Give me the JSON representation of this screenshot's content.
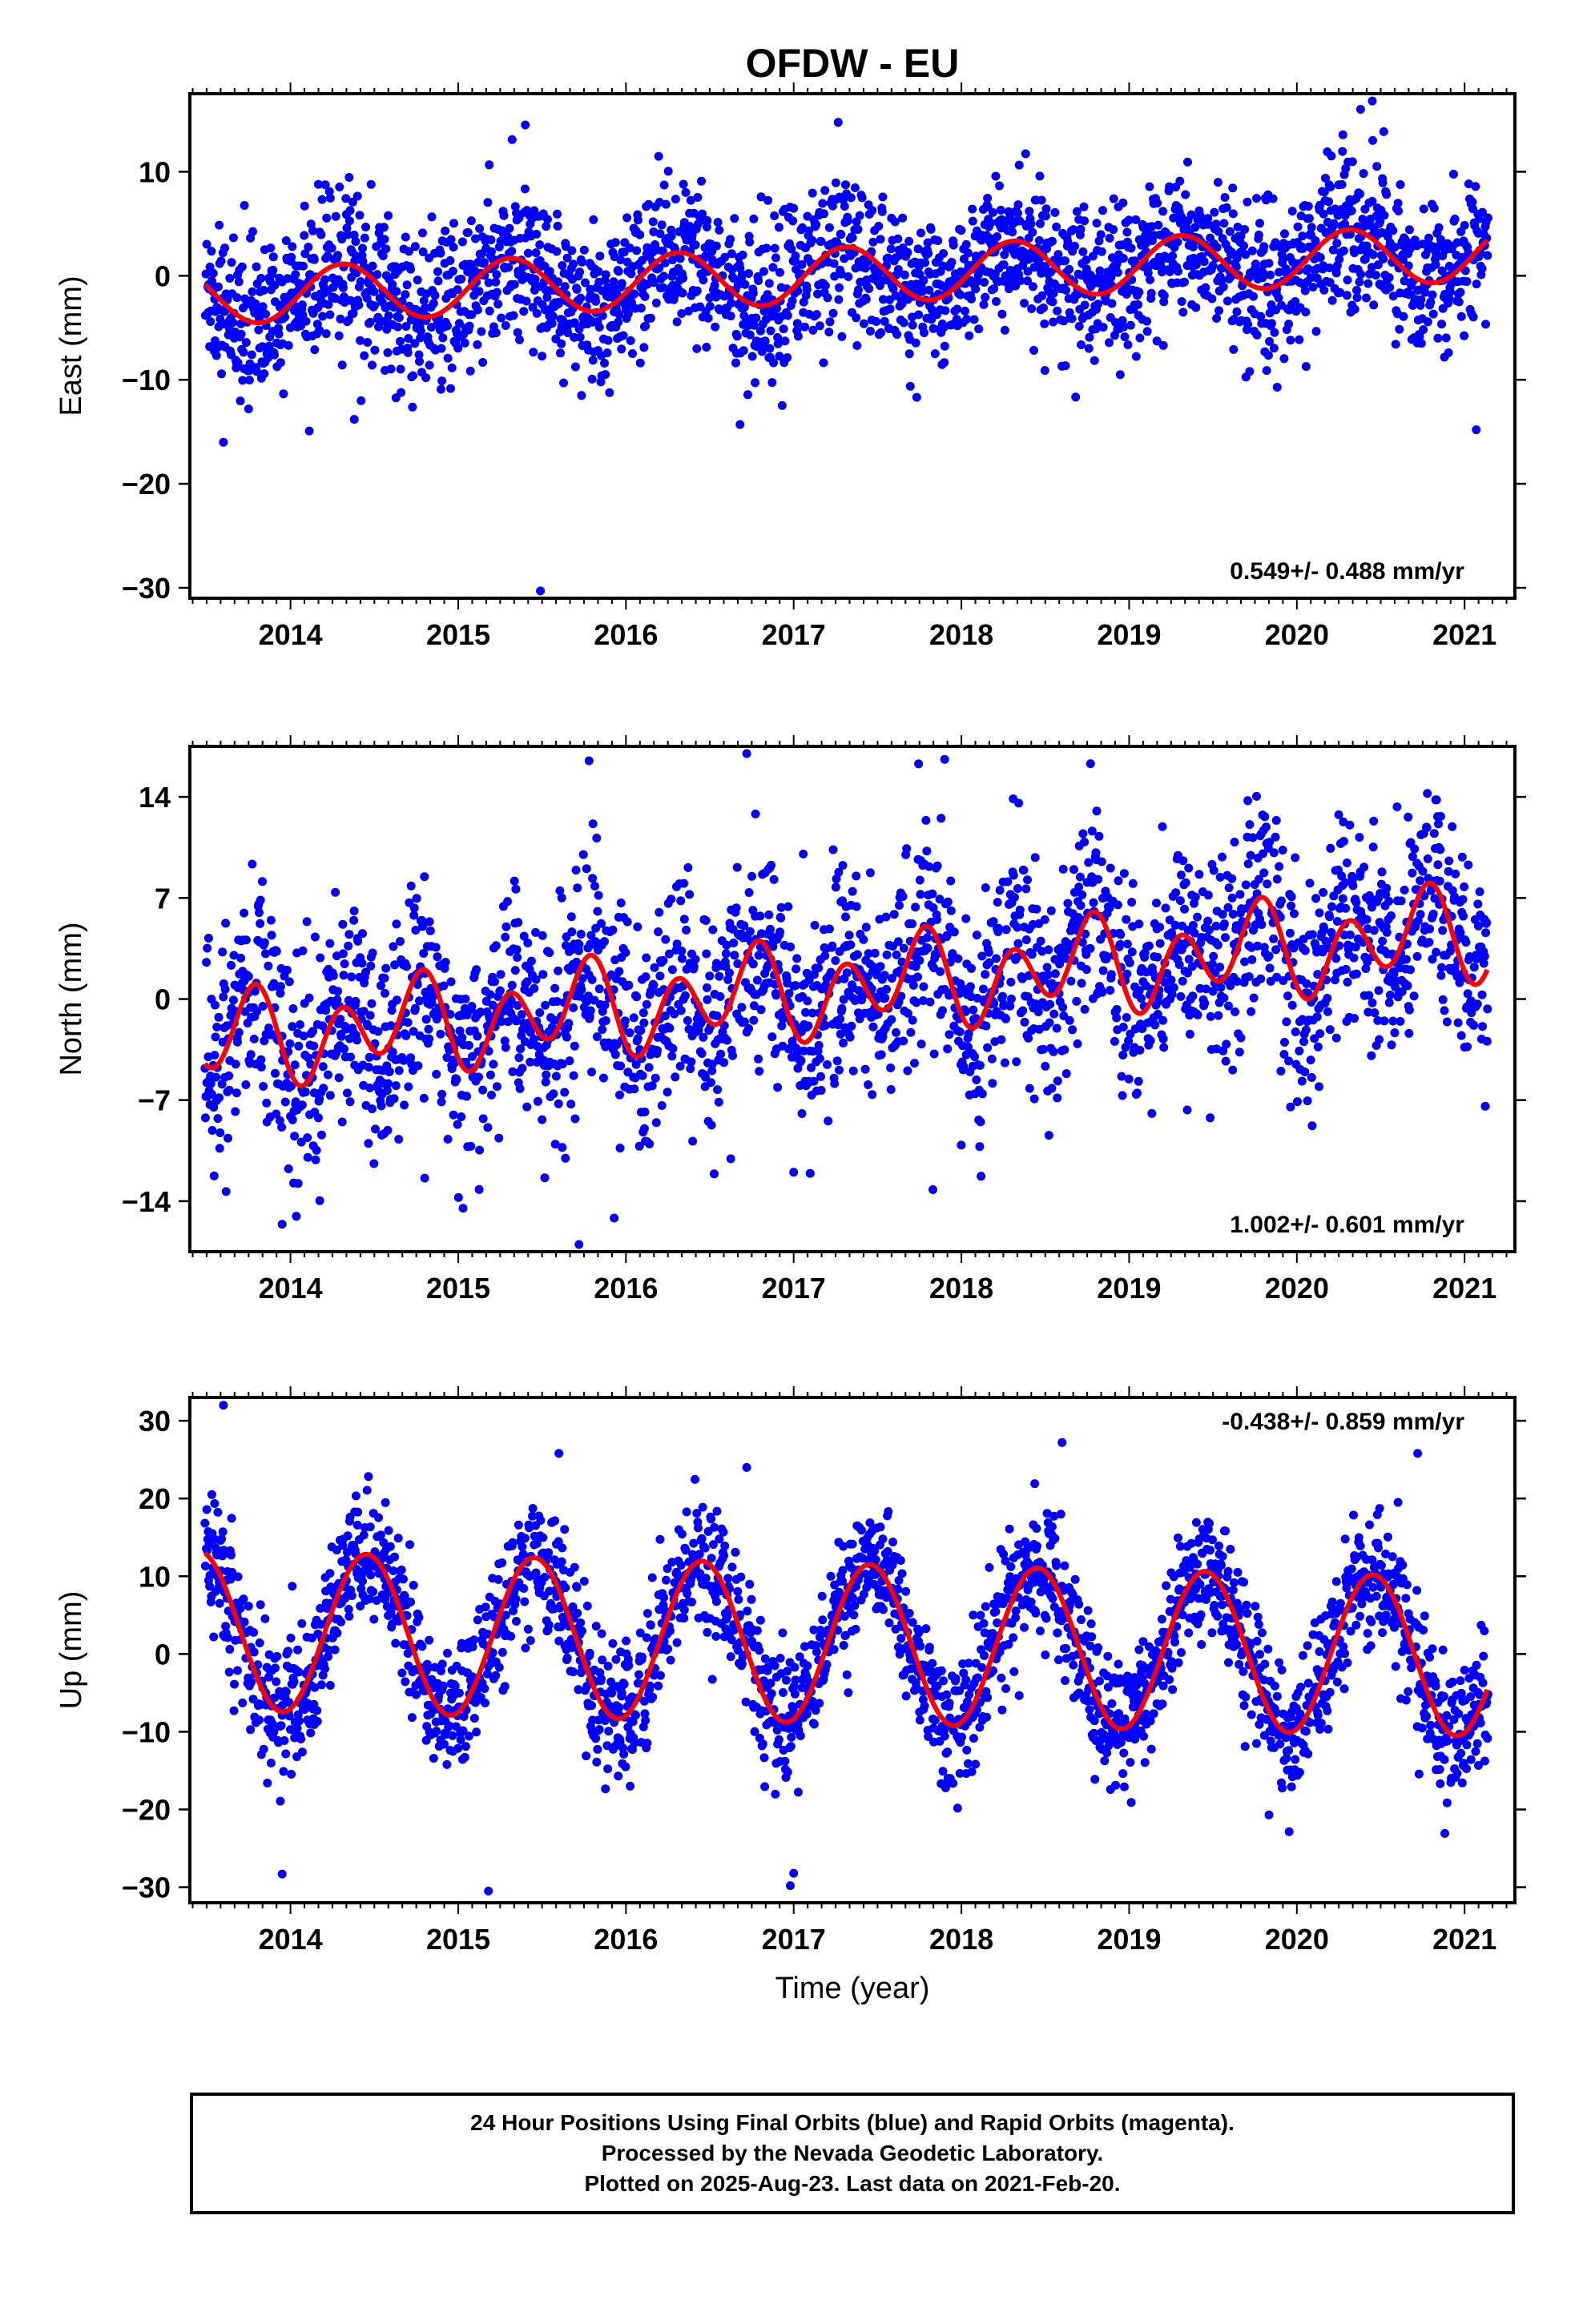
{
  "chart_data": {
    "type": "scatter",
    "title": "OFDW - EU",
    "x_tick_labels": [
      "2014",
      "2015",
      "2016",
      "2017",
      "2018",
      "2019",
      "2020",
      "2021"
    ],
    "xlim": [
      2013.4,
      2021.3
    ],
    "xlabel": "Time (year)",
    "last_data": 2021.14,
    "colors": {
      "points": "#0000ff",
      "fit": "#ff0000",
      "frame": "#000000"
    },
    "panels": [
      {
        "name": "East",
        "ylabel": "East (mm)",
        "ylim": [
          -31,
          17.5
        ],
        "y_ticks": [
          10,
          0,
          -10,
          -20,
          -30
        ],
        "y_tick_labels": [
          "10",
          "0",
          "−10",
          "−20",
          "−30"
        ],
        "rate_label": "0.549+/- 0.488 mm/yr",
        "rate_position": "bottom-right",
        "model": {
          "t0": 2013.5,
          "offset": -2.0,
          "rate": 0.549,
          "annual_sin": 2.5,
          "annual_cos": -1.0,
          "semi_sin": 0.0,
          "semi_cos": 0.0
        },
        "scatter_sd": 3.6,
        "outliers": [
          [
            2015.49,
            -30.3
          ],
          [
            2013.6,
            -16.0
          ],
          [
            2021.07,
            -14.8
          ],
          [
            2016.68,
            -14.3
          ],
          [
            2014.38,
            -13.8
          ],
          [
            2015.4,
            14.5
          ],
          [
            2020.45,
            16.8
          ],
          [
            2020.38,
            16.0
          ]
        ]
      },
      {
        "name": "North",
        "ylabel": "North (mm)",
        "ylim": [
          -17.5,
          17.5
        ],
        "y_ticks": [
          14,
          7,
          0,
          -7,
          -14
        ],
        "y_tick_labels": [
          "14",
          "7",
          "0",
          "−7",
          "−14"
        ],
        "rate_label": "1.002+/- 0.601 mm/yr",
        "rate_position": "bottom-right",
        "model": {
          "t0": 2013.5,
          "offset": -3.0,
          "rate": 1.002,
          "annual_sin": -1.3,
          "annual_cos": -0.5,
          "semi_sin": -1.6,
          "semi_cos": -2.1
        },
        "scatter_sd": 3.8,
        "outliers": [
          [
            2015.72,
            -17.0
          ],
          [
            2013.95,
            -15.6
          ],
          [
            2014.8,
            -12.4
          ],
          [
            2017.0,
            -12.0
          ],
          [
            2017.83,
            -13.2
          ],
          [
            2016.72,
            17.0
          ],
          [
            2015.78,
            16.5
          ],
          [
            2017.9,
            16.6
          ],
          [
            2018.77,
            16.3
          ]
        ]
      },
      {
        "name": "Up",
        "ylabel": "Up (mm)",
        "ylim": [
          -32,
          33
        ],
        "y_ticks": [
          30,
          20,
          10,
          0,
          -10,
          -20,
          -30
        ],
        "y_tick_labels": [
          "30",
          "20",
          "10",
          "0",
          "−10",
          "−20",
          "−30"
        ],
        "rate_label": "-0.438+/- 0.859 mm/yr",
        "rate_position": "top-right",
        "model": {
          "t0": 2013.5,
          "offset": 3.0,
          "rate": -0.438,
          "annual_sin": 3.0,
          "annual_cos": -9.8,
          "semi_sin": 0.0,
          "semi_cos": 0.0
        },
        "scatter_sd": 4.3,
        "outliers": [
          [
            2013.6,
            32.0
          ],
          [
            2013.95,
            -28.3
          ],
          [
            2015.18,
            -30.5
          ],
          [
            2016.98,
            -29.8
          ],
          [
            2017.0,
            -28.2
          ],
          [
            2018.6,
            27.2
          ],
          [
            2015.6,
            25.8
          ],
          [
            2016.72,
            24.0
          ],
          [
            2020.72,
            25.8
          ]
        ]
      }
    ]
  },
  "caption": {
    "line1": "24 Hour Positions Using Final Orbits (blue) and Rapid Orbits (magenta).",
    "line2": "Processed by the Nevada Geodetic Laboratory.",
    "line3": "Plotted on 2025-Aug-23. Last data on 2021-Feb-20."
  }
}
